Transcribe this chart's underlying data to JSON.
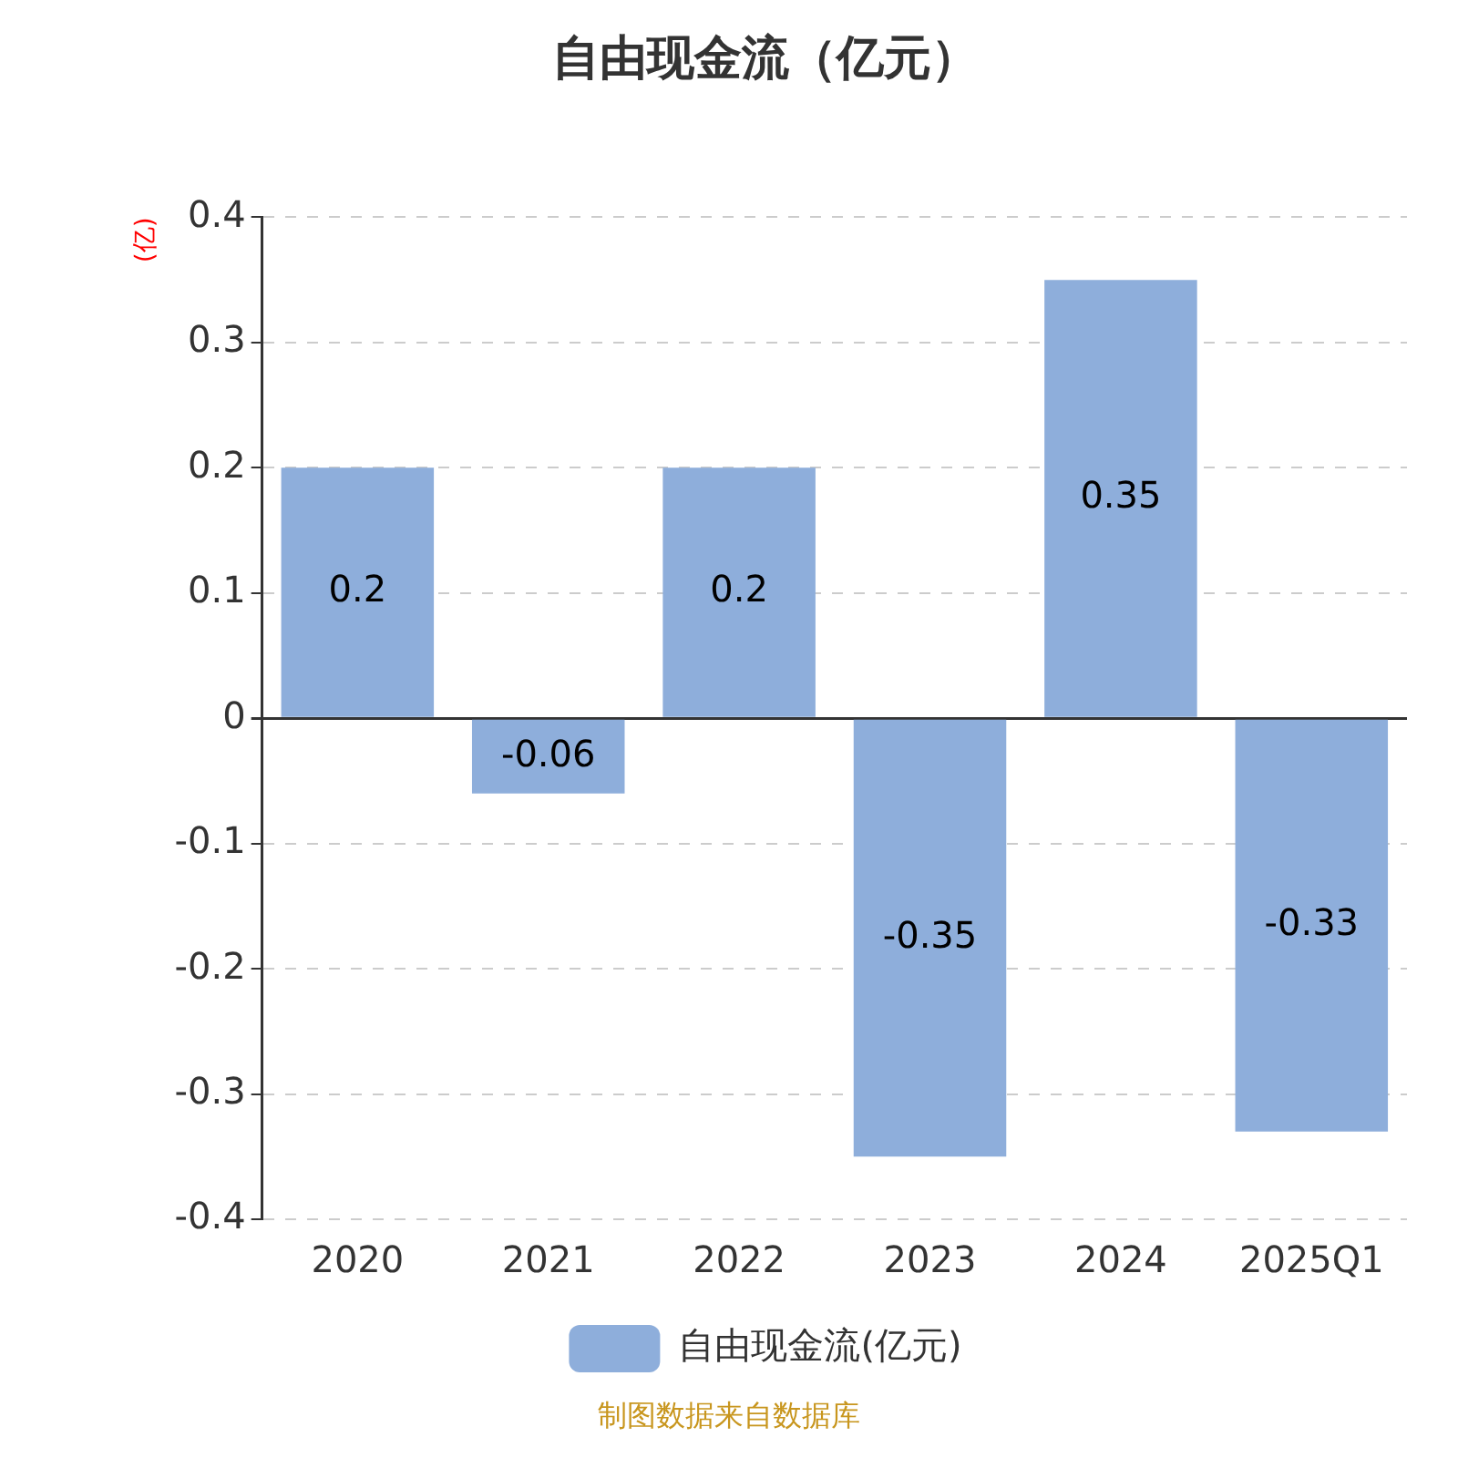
{
  "chart_data": {
    "type": "bar",
    "title": "自由现金流（亿元）",
    "ylabel": "(亿)",
    "categories": [
      "2020",
      "2021",
      "2022",
      "2023",
      "2024",
      "2025Q1"
    ],
    "series": [
      {
        "name": "自由现金流(亿元)",
        "color": "#8eaedb",
        "values": [
          0.2,
          -0.06,
          0.2,
          -0.35,
          0.35,
          -0.33
        ]
      }
    ],
    "ylim": [
      -0.4,
      0.4
    ],
    "yticks": [
      -0.4,
      -0.3,
      -0.2,
      -0.1,
      0,
      0.1,
      0.2,
      0.3,
      0.4
    ],
    "grid": "y",
    "legend": "bottom",
    "data_labels": true,
    "annotations": [
      "制图数据来自数据库"
    ]
  }
}
